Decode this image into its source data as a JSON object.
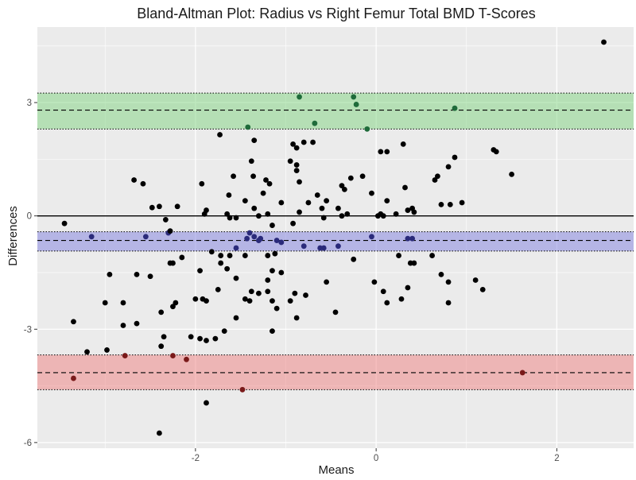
{
  "chart_data": {
    "type": "scatter",
    "title": "Bland-Altman Plot: Radius vs Right Femur Total BMD T-Scores",
    "xlabel": "Means",
    "ylabel": "Differences",
    "xlim": [
      -3.75,
      2.85
    ],
    "ylim": [
      -6.15,
      5.0
    ],
    "x_ticks": [
      -2,
      0,
      2
    ],
    "x_tick_labels": [
      "-2",
      "0",
      "2"
    ],
    "y_ticks": [
      -6,
      -3,
      0,
      3
    ],
    "y_tick_labels": [
      "-6",
      "-3",
      "0",
      "3"
    ],
    "grid": true,
    "colors": {
      "panel_bg": "#ebebeb",
      "grid": "#ffffff",
      "point": "#000000",
      "upper_band": "#7fd47f",
      "upper_point": "#1f6b3a",
      "mean_band": "#8080e0",
      "mean_point": "#2a2a7a",
      "lower_band": "#f08080",
      "lower_point": "#7a1a1a"
    },
    "zero_line": 0,
    "bands": [
      {
        "name": "upper-loa",
        "center": 2.8,
        "low": 2.3,
        "high": 3.25
      },
      {
        "name": "mean-difference",
        "center": -0.65,
        "low": -0.93,
        "high": -0.42
      },
      {
        "name": "lower-loa",
        "center": -4.15,
        "low": -4.6,
        "high": -3.68
      }
    ],
    "points": [
      [
        2.52,
        4.6
      ],
      [
        -0.85,
        3.15
      ],
      [
        -0.25,
        3.15
      ],
      [
        -0.22,
        2.95
      ],
      [
        0.87,
        2.85
      ],
      [
        -0.68,
        2.45
      ],
      [
        -1.42,
        2.35
      ],
      [
        -0.1,
        2.3
      ],
      [
        -1.73,
        2.15
      ],
      [
        -1.35,
        2.0
      ],
      [
        -0.8,
        1.95
      ],
      [
        -0.92,
        1.9
      ],
      [
        -0.7,
        1.95
      ],
      [
        0.3,
        1.9
      ],
      [
        0.05,
        1.7
      ],
      [
        0.12,
        1.7
      ],
      [
        1.3,
        1.75
      ],
      [
        1.33,
        1.7
      ],
      [
        -0.88,
        1.8
      ],
      [
        -0.95,
        1.45
      ],
      [
        -0.88,
        1.35
      ],
      [
        -1.38,
        1.45
      ],
      [
        -0.88,
        1.2
      ],
      [
        0.87,
        1.55
      ],
      [
        1.5,
        1.1
      ],
      [
        0.8,
        1.3
      ],
      [
        -1.58,
        1.05
      ],
      [
        -1.36,
        1.05
      ],
      [
        -1.22,
        0.95
      ],
      [
        -1.18,
        0.85
      ],
      [
        -0.85,
        0.9
      ],
      [
        -0.28,
        1.0
      ],
      [
        -0.15,
        1.05
      ],
      [
        0.68,
        1.05
      ],
      [
        0.65,
        0.95
      ],
      [
        -2.68,
        0.95
      ],
      [
        -2.58,
        0.85
      ],
      [
        -1.93,
        0.85
      ],
      [
        -0.38,
        0.8
      ],
      [
        0.32,
        0.75
      ],
      [
        -1.63,
        0.55
      ],
      [
        -1.25,
        0.6
      ],
      [
        -0.65,
        0.55
      ],
      [
        -0.35,
        0.7
      ],
      [
        -1.45,
        0.4
      ],
      [
        -1.05,
        0.35
      ],
      [
        -0.75,
        0.35
      ],
      [
        -0.55,
        0.4
      ],
      [
        0.12,
        0.4
      ],
      [
        -2.48,
        0.22
      ],
      [
        -2.4,
        0.25
      ],
      [
        -2.2,
        0.25
      ],
      [
        -1.9,
        0.05
      ],
      [
        -1.88,
        0.15
      ],
      [
        -1.65,
        0.05
      ],
      [
        -1.62,
        -0.05
      ],
      [
        -1.55,
        -0.05
      ],
      [
        -1.35,
        0.2
      ],
      [
        -1.3,
        0.0
      ],
      [
        -1.2,
        0.05
      ],
      [
        -0.85,
        0.1
      ],
      [
        -0.6,
        0.2
      ],
      [
        -0.58,
        -0.05
      ],
      [
        -0.42,
        0.2
      ],
      [
        -0.38,
        0.0
      ],
      [
        -0.32,
        0.05
      ],
      [
        0.05,
        0.05
      ],
      [
        0.22,
        0.05
      ],
      [
        0.35,
        0.15
      ],
      [
        0.4,
        0.2
      ],
      [
        0.72,
        0.3
      ],
      [
        0.82,
        0.3
      ],
      [
        0.95,
        0.35
      ],
      [
        -0.05,
        0.6
      ],
      [
        0.42,
        0.1
      ],
      [
        -3.45,
        -0.2
      ],
      [
        -2.33,
        -0.1
      ],
      [
        -1.15,
        -0.25
      ],
      [
        -0.92,
        -0.2
      ],
      [
        0.02,
        0.0
      ],
      [
        0.08,
        0.0
      ],
      [
        -3.15,
        -0.55
      ],
      [
        -2.55,
        -0.55
      ],
      [
        -1.43,
        -0.6
      ],
      [
        -1.4,
        -0.45
      ],
      [
        -1.35,
        -0.55
      ],
      [
        -1.3,
        -0.65
      ],
      [
        -1.28,
        -0.6
      ],
      [
        -1.1,
        -0.65
      ],
      [
        -1.05,
        -0.7
      ],
      [
        -0.8,
        -0.8
      ],
      [
        -0.62,
        -0.85
      ],
      [
        -0.58,
        -0.85
      ],
      [
        -0.42,
        -0.8
      ],
      [
        -0.05,
        -0.55
      ],
      [
        0.35,
        -0.6
      ],
      [
        0.4,
        -0.6
      ],
      [
        -0.25,
        -1.15
      ],
      [
        0.38,
        -1.25
      ],
      [
        0.42,
        -1.25
      ],
      [
        -2.3,
        -0.45
      ],
      [
        -2.28,
        -0.4
      ],
      [
        -1.82,
        -0.95
      ],
      [
        -1.72,
        -1.05
      ],
      [
        -1.62,
        -1.05
      ],
      [
        -1.45,
        -1.05
      ],
      [
        -1.2,
        -1.05
      ],
      [
        -1.12,
        -1.0
      ],
      [
        0.25,
        -1.05
      ],
      [
        -1.55,
        -0.85
      ],
      [
        -2.28,
        -1.25
      ],
      [
        -2.25,
        -1.25
      ],
      [
        -2.5,
        -1.6
      ],
      [
        -2.65,
        -1.55
      ],
      [
        -2.95,
        -1.55
      ],
      [
        -1.95,
        -1.45
      ],
      [
        -1.72,
        -1.25
      ],
      [
        -1.65,
        -1.4
      ],
      [
        -1.55,
        -1.65
      ],
      [
        -1.15,
        -1.45
      ],
      [
        -1.05,
        -1.5
      ],
      [
        -1.2,
        -1.7
      ],
      [
        -0.55,
        -1.75
      ],
      [
        -0.9,
        -2.05
      ],
      [
        -0.78,
        -2.1
      ],
      [
        -0.02,
        -1.75
      ],
      [
        0.08,
        -2.0
      ],
      [
        0.35,
        -1.9
      ],
      [
        0.8,
        -1.75
      ],
      [
        1.1,
        -1.7
      ],
      [
        1.18,
        -1.95
      ],
      [
        0.72,
        -1.55
      ],
      [
        0.62,
        -1.05
      ],
      [
        -2.15,
        -1.1
      ],
      [
        -2.0,
        -2.2
      ],
      [
        -1.92,
        -2.2
      ],
      [
        -1.88,
        -2.25
      ],
      [
        -1.75,
        -1.95
      ],
      [
        -1.45,
        -2.2
      ],
      [
        -1.4,
        -2.25
      ],
      [
        -1.38,
        -2.0
      ],
      [
        -1.3,
        -2.05
      ],
      [
        -1.2,
        -2.0
      ],
      [
        -1.15,
        -2.25
      ],
      [
        -1.1,
        -2.45
      ],
      [
        -0.95,
        -2.25
      ],
      [
        -0.45,
        -2.55
      ],
      [
        -0.88,
        -2.7
      ],
      [
        0.12,
        -2.3
      ],
      [
        0.28,
        -2.2
      ],
      [
        0.8,
        -2.3
      ],
      [
        -3.0,
        -2.3
      ],
      [
        -2.8,
        -2.3
      ],
      [
        -2.65,
        -2.85
      ],
      [
        -2.8,
        -2.9
      ],
      [
        -2.38,
        -2.55
      ],
      [
        -2.25,
        -2.4
      ],
      [
        -2.22,
        -2.3
      ],
      [
        -1.55,
        -2.7
      ],
      [
        -1.15,
        -3.05
      ],
      [
        -1.68,
        -3.05
      ],
      [
        -1.78,
        -3.25
      ],
      [
        -1.88,
        -3.3
      ],
      [
        -1.95,
        -3.25
      ],
      [
        -2.05,
        -3.2
      ],
      [
        -2.35,
        -3.2
      ],
      [
        -2.38,
        -3.45
      ],
      [
        -3.35,
        -2.8
      ],
      [
        -2.98,
        -3.55
      ],
      [
        -3.2,
        -3.6
      ],
      [
        -2.78,
        -3.7
      ],
      [
        -2.25,
        -3.7
      ],
      [
        -2.1,
        -3.8
      ],
      [
        -3.35,
        -4.3
      ],
      [
        1.62,
        -4.15
      ],
      [
        -1.88,
        -4.95
      ],
      [
        -1.48,
        -4.6
      ],
      [
        -2.4,
        -5.75
      ]
    ]
  }
}
